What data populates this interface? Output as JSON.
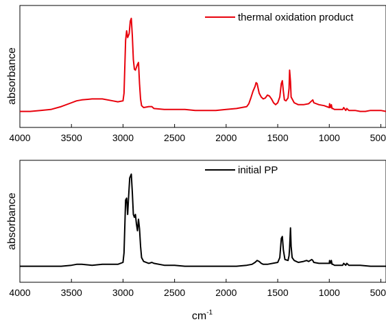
{
  "xlabel_base": "cm",
  "xlabel_sup": "-1",
  "chart_data": [
    {
      "type": "line",
      "ylabel": "absorbance",
      "xlim": [
        4000,
        450
      ],
      "xticks": [
        4000,
        3500,
        3000,
        2500,
        2000,
        1500,
        1000,
        500
      ],
      "xtick_labels": [
        "4000",
        "3500",
        "3000",
        "2500",
        "2000",
        "1500",
        "1000",
        "500"
      ],
      "grid": false,
      "legend_position": "top-right",
      "series": [
        {
          "name": "thermal oxidation product",
          "color": "#e8000b",
          "x": [
            4000,
            3900,
            3800,
            3700,
            3600,
            3500,
            3450,
            3400,
            3300,
            3200,
            3100,
            3050,
            3000,
            2990,
            2975,
            2965,
            2955,
            2940,
            2930,
            2920,
            2910,
            2900,
            2890,
            2880,
            2870,
            2860,
            2850,
            2840,
            2830,
            2820,
            2800,
            2750,
            2720,
            2700,
            2600,
            2500,
            2400,
            2300,
            2200,
            2100,
            2000,
            1900,
            1800,
            1780,
            1760,
            1740,
            1720,
            1710,
            1700,
            1690,
            1680,
            1660,
            1640,
            1620,
            1600,
            1580,
            1560,
            1540,
            1520,
            1500,
            1480,
            1465,
            1455,
            1445,
            1435,
            1420,
            1400,
            1390,
            1385,
            1376,
            1370,
            1360,
            1340,
            1300,
            1250,
            1200,
            1170,
            1160,
            1150,
            1100,
            1050,
            1000,
            997,
            990,
            980,
            973,
            965,
            950,
            900,
            870,
            860,
            840,
            830,
            810,
            800,
            750,
            700,
            650,
            600,
            550,
            500,
            450
          ],
          "y": [
            0.01,
            0.01,
            0.02,
            0.03,
            0.06,
            0.1,
            0.12,
            0.13,
            0.14,
            0.14,
            0.12,
            0.11,
            0.12,
            0.2,
            0.75,
            0.85,
            0.78,
            0.82,
            0.95,
            0.98,
            0.8,
            0.55,
            0.45,
            0.44,
            0.47,
            0.5,
            0.52,
            0.3,
            0.14,
            0.07,
            0.05,
            0.06,
            0.06,
            0.04,
            0.03,
            0.03,
            0.03,
            0.02,
            0.02,
            0.02,
            0.03,
            0.04,
            0.06,
            0.09,
            0.15,
            0.22,
            0.27,
            0.31,
            0.3,
            0.25,
            0.2,
            0.16,
            0.14,
            0.15,
            0.18,
            0.17,
            0.14,
            0.1,
            0.08,
            0.1,
            0.16,
            0.3,
            0.33,
            0.22,
            0.13,
            0.12,
            0.15,
            0.25,
            0.44,
            0.32,
            0.16,
            0.14,
            0.1,
            0.08,
            0.08,
            0.09,
            0.12,
            0.13,
            0.1,
            0.08,
            0.07,
            0.05,
            0.09,
            0.05,
            0.08,
            0.04,
            0.04,
            0.03,
            0.03,
            0.03,
            0.05,
            0.02,
            0.04,
            0.02,
            0.02,
            0.02,
            0.01,
            0.01,
            0.02,
            0.02,
            0.02,
            0.01
          ]
        }
      ]
    },
    {
      "type": "line",
      "ylabel": "absorbance",
      "xlim": [
        4000,
        450
      ],
      "xticks": [
        4000,
        3500,
        3000,
        2500,
        2000,
        1500,
        1000,
        500
      ],
      "xtick_labels": [
        "4000",
        "3500",
        "3000",
        "2500",
        "2000",
        "1500",
        "1000",
        "500"
      ],
      "grid": false,
      "legend_position": "top-right",
      "series": [
        {
          "name": "initial PP",
          "color": "#000000",
          "x": [
            4000,
            3800,
            3600,
            3500,
            3450,
            3400,
            3300,
            3200,
            3100,
            3050,
            3000,
            2990,
            2975,
            2965,
            2955,
            2945,
            2935,
            2920,
            2910,
            2900,
            2890,
            2880,
            2870,
            2860,
            2850,
            2840,
            2830,
            2820,
            2800,
            2750,
            2720,
            2700,
            2600,
            2500,
            2400,
            2300,
            2200,
            2000,
            1900,
            1800,
            1750,
            1720,
            1700,
            1680,
            1660,
            1640,
            1600,
            1500,
            1480,
            1465,
            1455,
            1445,
            1430,
            1400,
            1390,
            1385,
            1376,
            1370,
            1360,
            1340,
            1300,
            1250,
            1220,
            1200,
            1170,
            1160,
            1150,
            1100,
            1050,
            1000,
            997,
            990,
            980,
            973,
            965,
            950,
            900,
            870,
            860,
            840,
            830,
            810,
            800,
            750,
            700,
            600,
            500,
            450
          ],
          "y": [
            0.01,
            0.01,
            0.01,
            0.02,
            0.03,
            0.03,
            0.02,
            0.03,
            0.03,
            0.03,
            0.05,
            0.15,
            0.7,
            0.72,
            0.55,
            0.75,
            0.93,
            0.97,
            0.78,
            0.55,
            0.52,
            0.55,
            0.45,
            0.38,
            0.5,
            0.4,
            0.22,
            0.1,
            0.06,
            0.04,
            0.05,
            0.04,
            0.02,
            0.02,
            0.01,
            0.01,
            0.01,
            0.01,
            0.01,
            0.02,
            0.03,
            0.05,
            0.07,
            0.06,
            0.04,
            0.03,
            0.03,
            0.05,
            0.1,
            0.3,
            0.32,
            0.18,
            0.08,
            0.07,
            0.12,
            0.2,
            0.41,
            0.22,
            0.1,
            0.07,
            0.05,
            0.06,
            0.07,
            0.06,
            0.08,
            0.07,
            0.05,
            0.04,
            0.04,
            0.04,
            0.07,
            0.04,
            0.07,
            0.03,
            0.03,
            0.02,
            0.02,
            0.02,
            0.04,
            0.02,
            0.04,
            0.02,
            0.02,
            0.02,
            0.02,
            0.01,
            0.01,
            0.01
          ]
        }
      ]
    }
  ]
}
